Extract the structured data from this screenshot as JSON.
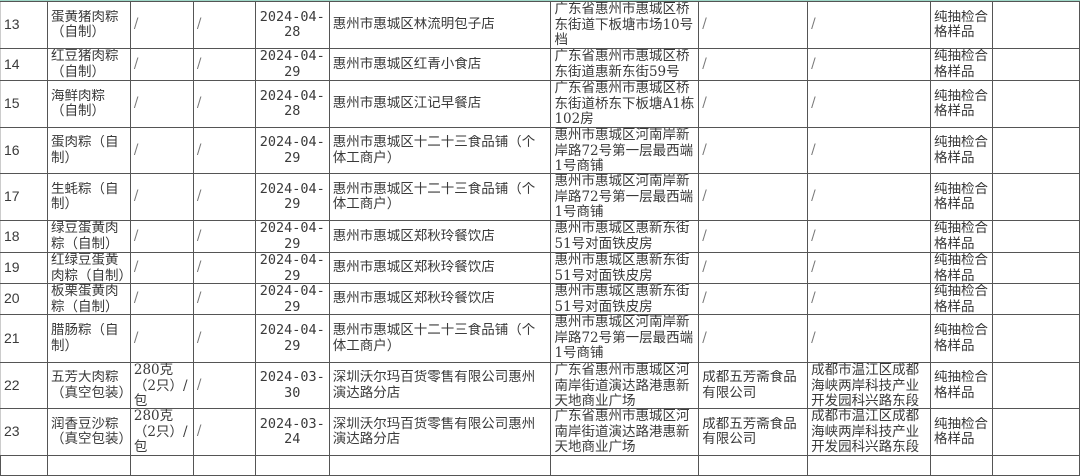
{
  "rows": [
    {
      "no": "13",
      "name": "蛋黄猪肉粽（自制）",
      "spec": "/",
      "brand": "/",
      "date": "2024-04-28",
      "store": "惠州市惠城区林流明包子店",
      "store_addr": "广东省惠州市惠城区桥东街道下板塘市场10号档",
      "maker": "/",
      "maker_addr": "/",
      "result": "纯抽检合格样品",
      "note": ""
    },
    {
      "no": "14",
      "name": "红豆猪肉粽（自制）",
      "spec": "/",
      "brand": "/",
      "date": "2024-04-29",
      "store": "惠州市惠城区红青小食店",
      "store_addr": "广东省惠州市惠城区桥东街道惠新东街59号",
      "maker": "/",
      "maker_addr": "/",
      "result": "纯抽检合格样品",
      "note": ""
    },
    {
      "no": "15",
      "name": "海鲜肉粽（自制）",
      "spec": "/",
      "brand": "/",
      "date": "2024-04-28",
      "store": "惠州市惠城区江记早餐店",
      "store_addr": "广东省惠州市惠城区桥东街道桥东下板塘A1栋102房",
      "maker": "/",
      "maker_addr": "/",
      "result": "纯抽检合格样品",
      "note": ""
    },
    {
      "no": "16",
      "name": "蛋肉粽（自制）",
      "spec": "/",
      "brand": "/",
      "date": "2024-04-29",
      "store": "惠州市惠城区十二十三食品铺（个体工商户）",
      "store_addr": "惠州市惠城区河南岸新岸路72号第一层最西端1号商铺",
      "maker": "/",
      "maker_addr": "/",
      "result": "纯抽检合格样品",
      "note": ""
    },
    {
      "no": "17",
      "name": "生蚝粽（自制）",
      "spec": "/",
      "brand": "/",
      "date": "2024-04-29",
      "store": "惠州市惠城区十二十三食品铺（个体工商户）",
      "store_addr": "惠州市惠城区河南岸新岸路72号第一层最西端1号商铺",
      "maker": "/",
      "maker_addr": "/",
      "result": "纯抽检合格样品",
      "note": ""
    },
    {
      "no": "18",
      "name": "绿豆蛋黄肉粽（自制）",
      "spec": "/",
      "brand": "/",
      "date": "2024-04-29",
      "store": "惠州市惠城区郑秋玲餐饮店",
      "store_addr": "惠州市惠城区惠新东街51号对面铁皮房",
      "maker": "/",
      "maker_addr": "/",
      "result": "纯抽检合格样品",
      "note": ""
    },
    {
      "no": "19",
      "name": "红绿豆蛋黄肉粽（自制）",
      "spec": "/",
      "brand": "/",
      "date": "2024-04-29",
      "store": "惠州市惠城区郑秋玲餐饮店",
      "store_addr": "惠州市惠城区惠新东街51号对面铁皮房",
      "maker": "/",
      "maker_addr": "/",
      "result": "纯抽检合格样品",
      "note": ""
    },
    {
      "no": "20",
      "name": "板栗蛋黄肉粽（自制）",
      "spec": "/",
      "brand": "/",
      "date": "2024-04-29",
      "store": "惠州市惠城区郑秋玲餐饮店",
      "store_addr": "惠州市惠城区惠新东街51号对面铁皮房",
      "maker": "/",
      "maker_addr": "/",
      "result": "纯抽检合格样品",
      "note": ""
    },
    {
      "no": "21",
      "name": "腊肠粽（自制）",
      "spec": "/",
      "brand": "/",
      "date": "2024-04-29",
      "store": "惠州市惠城区十二十三食品铺（个体工商户）",
      "store_addr": "惠州市惠城区河南岸新岸路72号第一层最西端1号商铺",
      "maker": "/",
      "maker_addr": "/",
      "result": "纯抽检合格样品",
      "note": ""
    },
    {
      "no": "22",
      "name": "五芳大肉粽（真空包装）",
      "spec": "280克（2只）/包",
      "brand": "/",
      "date": "2024-03-30",
      "store": "深圳沃尔玛百货零售有限公司惠州演达路分店",
      "store_addr": "广东省惠州市惠城区河南岸街道演达路港惠新天地商业广场",
      "maker": "成都五芳斋食品有限公司",
      "maker_addr": "成都市温江区成都海峡两岸科技产业开发园科兴路东段800号",
      "result": "纯抽检合格样品",
      "note": ""
    },
    {
      "no": "23",
      "name": "润香豆沙粽（真空包装）",
      "spec": "280克（2只）/包",
      "brand": "/",
      "date": "2024-03-24",
      "store": "深圳沃尔玛百货零售有限公司惠州演达路分店",
      "store_addr": "广东省惠州市惠城区河南岸街道演达路港惠新天地商业广场",
      "maker": "成都五芳斋食品有限公司",
      "maker_addr": "成都市温江区成都海峡两岸科技产业开发园科兴路东段800号",
      "result": "纯抽检合格样品",
      "note": ""
    }
  ]
}
